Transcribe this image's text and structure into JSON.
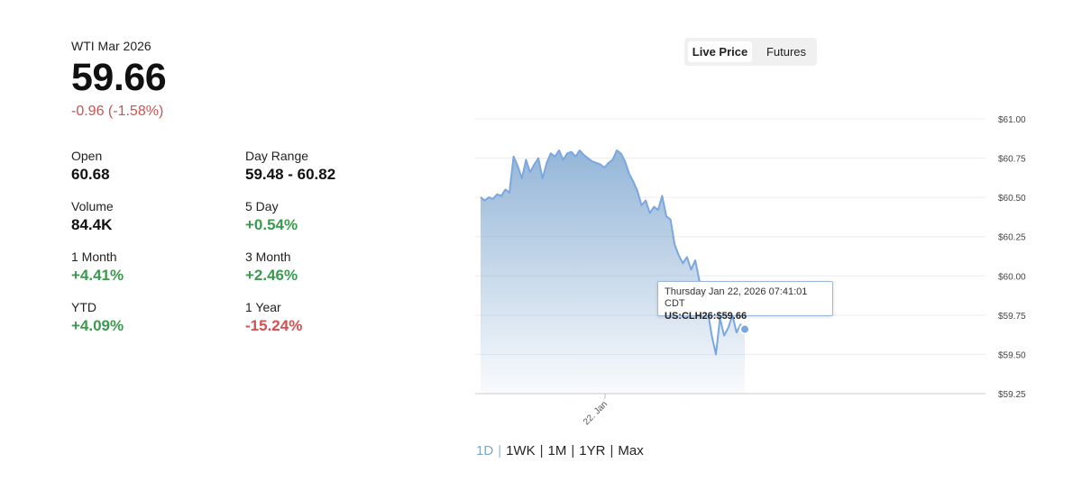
{
  "quote": {
    "instrument": "WTI Mar 2026",
    "price": "59.66",
    "change": "-0.96 (-1.58%)"
  },
  "stats": [
    {
      "label": "Open",
      "value": "60.68",
      "tone": "neutral"
    },
    {
      "label": "Day Range",
      "value": "59.48 - 60.82",
      "tone": "neutral"
    },
    {
      "label": "Volume",
      "value": "84.4K",
      "tone": "neutral"
    },
    {
      "label": "5 Day",
      "value": "+0.54%",
      "tone": "positive"
    },
    {
      "label": "1 Month",
      "value": "+4.41%",
      "tone": "positive"
    },
    {
      "label": "3 Month",
      "value": "+2.46%",
      "tone": "positive"
    },
    {
      "label": "YTD",
      "value": "+4.09%",
      "tone": "positive"
    },
    {
      "label": "1 Year",
      "value": "-15.24%",
      "tone": "negative"
    }
  ],
  "toggle": {
    "live_label": "Live Price",
    "futures_label": "Futures",
    "active": "live"
  },
  "tooltip": {
    "date": "Thursday Jan 22, 2026 07:41:01 CDT",
    "value": "US:CLH26:$59.66"
  },
  "ranges": {
    "items": [
      "1D",
      "1WK",
      "1M",
      "1YR",
      "Max"
    ],
    "active": "1D"
  },
  "colors": {
    "line": "#7aa7df",
    "fill_top": "#8fb2d6",
    "positive": "#3a9a4e",
    "negative": "#d25050"
  },
  "chart_data": {
    "type": "area",
    "title": "",
    "xlabel": "",
    "ylabel": "",
    "ylim": [
      59.25,
      61.0
    ],
    "y_ticks": [
      61.0,
      60.75,
      60.5,
      60.25,
      60.0,
      59.75,
      59.5,
      59.25
    ],
    "y_tick_labels": [
      "$61.00",
      "$60.75",
      "$60.50",
      "$60.25",
      "$60.00",
      "$59.75",
      "$59.50",
      "$59.25"
    ],
    "x_tick_labels": [
      "22. Jan"
    ],
    "grid": true,
    "series": [
      {
        "values": [
          60.5,
          60.48,
          60.5,
          60.49,
          60.52,
          60.51,
          60.55,
          60.53,
          60.76,
          60.7,
          60.62,
          60.74,
          60.66,
          60.71,
          60.75,
          60.62,
          60.72,
          60.78,
          60.76,
          60.8,
          60.74,
          60.78,
          60.79,
          60.76,
          60.8,
          60.77,
          60.75,
          60.73,
          60.72,
          60.71,
          60.69,
          60.72,
          60.74,
          60.8,
          60.78,
          60.73,
          60.65,
          60.6,
          60.54,
          60.45,
          60.48,
          60.4,
          60.44,
          60.42,
          60.51,
          60.38,
          60.36,
          60.2,
          60.13,
          60.08,
          60.12,
          60.04,
          60.1,
          59.97,
          59.92,
          59.78,
          59.62,
          59.5,
          59.73,
          59.62,
          59.67,
          59.75,
          59.64,
          59.69,
          59.66
        ]
      }
    ]
  }
}
